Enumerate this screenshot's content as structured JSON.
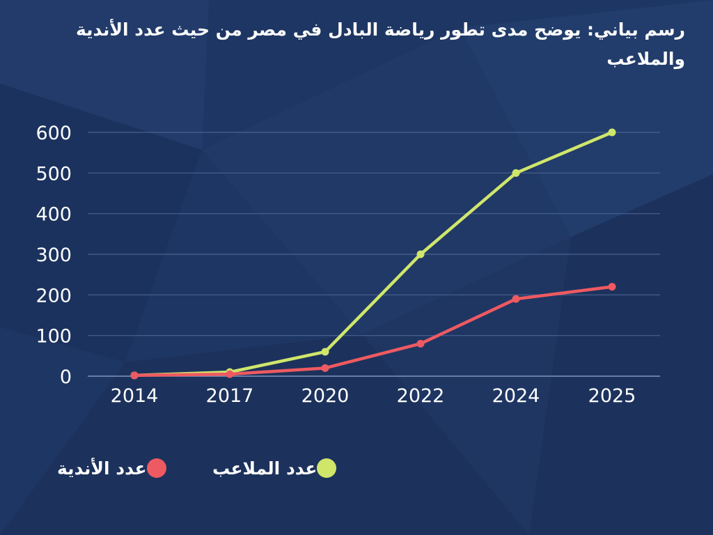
{
  "title": "رسم بياني: يوضح مدى تطور رياضة البادل في مصر من حيث عدد الأندية والملاعب",
  "colors": {
    "background": "#1e3663",
    "grid": "#4a6390",
    "axis_text": "#ffffff",
    "stadiums": "#cfe66b",
    "clubs": "#ee5a61"
  },
  "chart_data": {
    "type": "line",
    "categories": [
      "2014",
      "2017",
      "2020",
      "2022",
      "2024",
      "2025"
    ],
    "series": [
      {
        "name": "عدد الملاعب",
        "color": "#cfe66b",
        "values": [
          2,
          10,
          60,
          300,
          500,
          600
        ]
      },
      {
        "name": "عدد الأندية",
        "color": "#ee5a61",
        "values": [
          2,
          5,
          20,
          80,
          190,
          220
        ]
      }
    ],
    "yticks": [
      0,
      100,
      200,
      300,
      400,
      500,
      600
    ],
    "ylim": [
      0,
      600
    ],
    "grid": true,
    "legend": "bottom"
  },
  "legend": {
    "stadiums_label": "عدد الملاعب",
    "clubs_label": "عدد الأندية"
  }
}
